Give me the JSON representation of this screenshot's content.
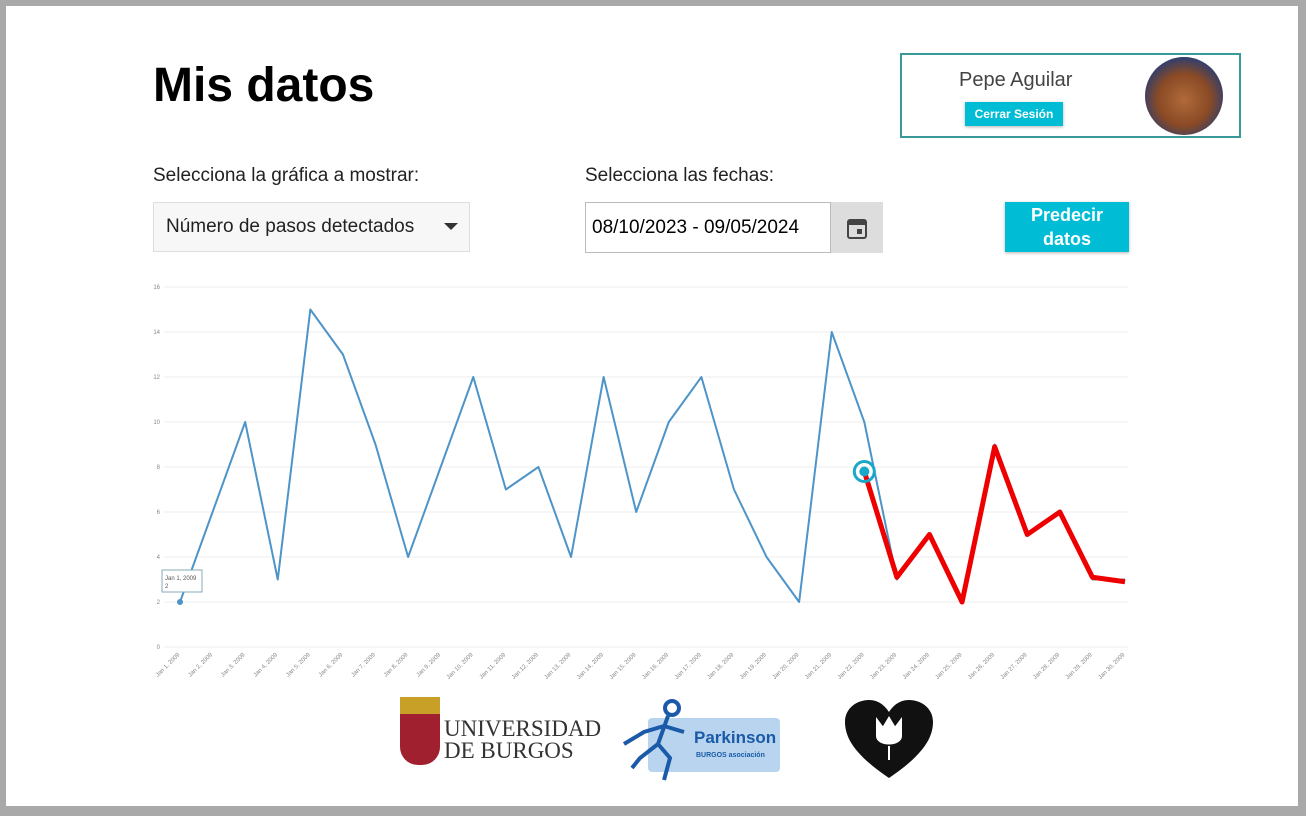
{
  "header": {
    "title": "Mis datos"
  },
  "user": {
    "name": "Pepe Aguilar",
    "logout": "Cerrar Sesión"
  },
  "controls": {
    "chart_label": "Selecciona la gráfica a mostrar:",
    "chart_select": "Número de pasos detectados",
    "dates_label": "Selecciona las fechas:",
    "dates_value": "08/10/2023 - 09/05/2024",
    "predict": "Predecir datos"
  },
  "chart_data": {
    "type": "line",
    "categories": [
      "Jan 1, 2009",
      "Jan 2, 2009",
      "Jan 3, 2009",
      "Jan 4, 2009",
      "Jan 5, 2009",
      "Jan 6, 2009",
      "Jan 7, 2009",
      "Jan 8, 2009",
      "Jan 9, 2009",
      "Jan 10, 2009",
      "Jan 11, 2009",
      "Jan 12, 2009",
      "Jan 13, 2009",
      "Jan 14, 2009",
      "Jan 15, 2009",
      "Jan 16, 2009",
      "Jan 17, 2009",
      "Jan 18, 2009",
      "Jan 19, 2009",
      "Jan 20, 2009",
      "Jan 21, 2009",
      "Jan 22, 2009",
      "Jan 23, 2009",
      "Jan 24, 2009",
      "Jan 25, 2009",
      "Jan 26, 2009",
      "Jan 27, 2009",
      "Jan 28, 2009",
      "Jan 29, 2009",
      "Jan 30, 2009"
    ],
    "series": [
      {
        "color": "#4d94c8",
        "values": [
          2,
          6,
          10,
          3,
          15,
          13,
          9,
          4,
          8,
          12,
          7,
          8,
          4,
          12,
          6,
          10,
          12,
          7,
          4,
          2,
          14,
          10,
          3,
          5,
          2,
          9,
          5,
          6,
          3,
          3
        ]
      },
      {
        "color": "#ee0000",
        "values": [
          null,
          null,
          null,
          null,
          null,
          null,
          null,
          null,
          null,
          null,
          null,
          null,
          null,
          null,
          null,
          null,
          null,
          null,
          null,
          null,
          null,
          7.8,
          3.1,
          5,
          2,
          8.9,
          5,
          6,
          3.1,
          2.9
        ]
      }
    ],
    "ylim": [
      0,
      16
    ],
    "yticks": [
      0,
      2,
      4,
      6,
      8,
      10,
      12,
      14,
      16
    ],
    "grid": true
  },
  "logos": {
    "university": [
      "UNIVERSIDAD",
      "DE BURGOS"
    ],
    "association": [
      "Parkinson",
      "BURGOS asociación"
    ]
  }
}
